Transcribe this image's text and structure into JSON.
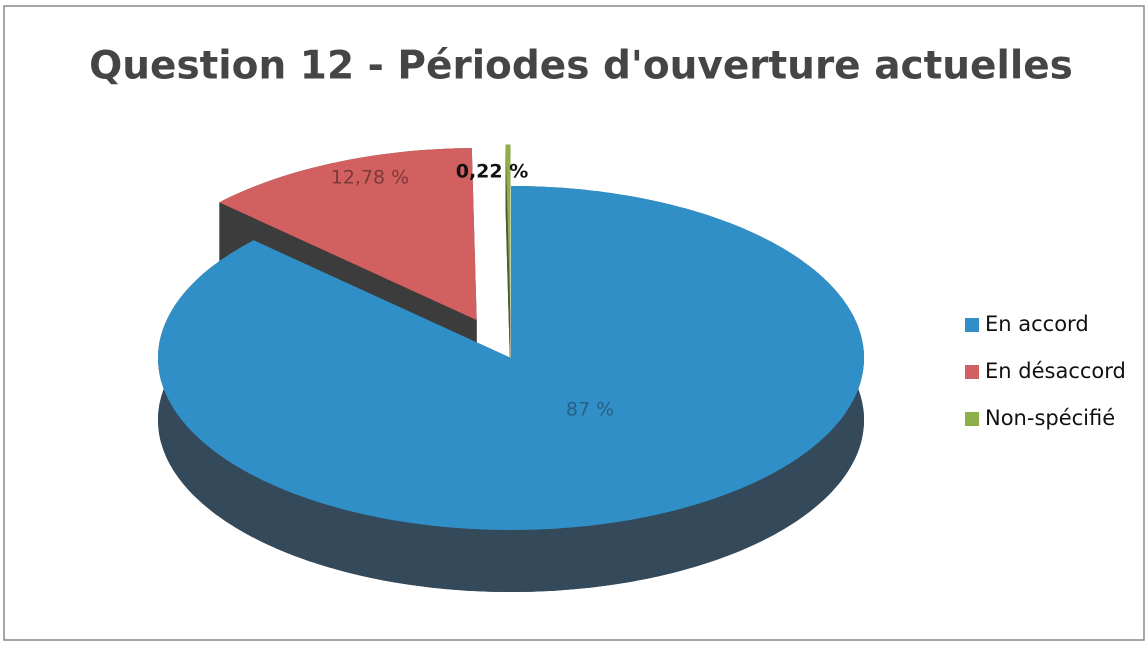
{
  "chart_data": {
    "type": "pie",
    "title": "Question 12 - Périodes d'ouverture actuelles",
    "categories": [
      "En accord",
      "En désaccord",
      "Non-spécifié"
    ],
    "values": [
      87,
      12.78,
      0.22
    ],
    "value_labels": [
      "87 %",
      "12,78 %",
      "0,22 %"
    ],
    "colors": [
      "#2f8fc6",
      "#d26060",
      "#8db04a"
    ],
    "legend": "right"
  }
}
